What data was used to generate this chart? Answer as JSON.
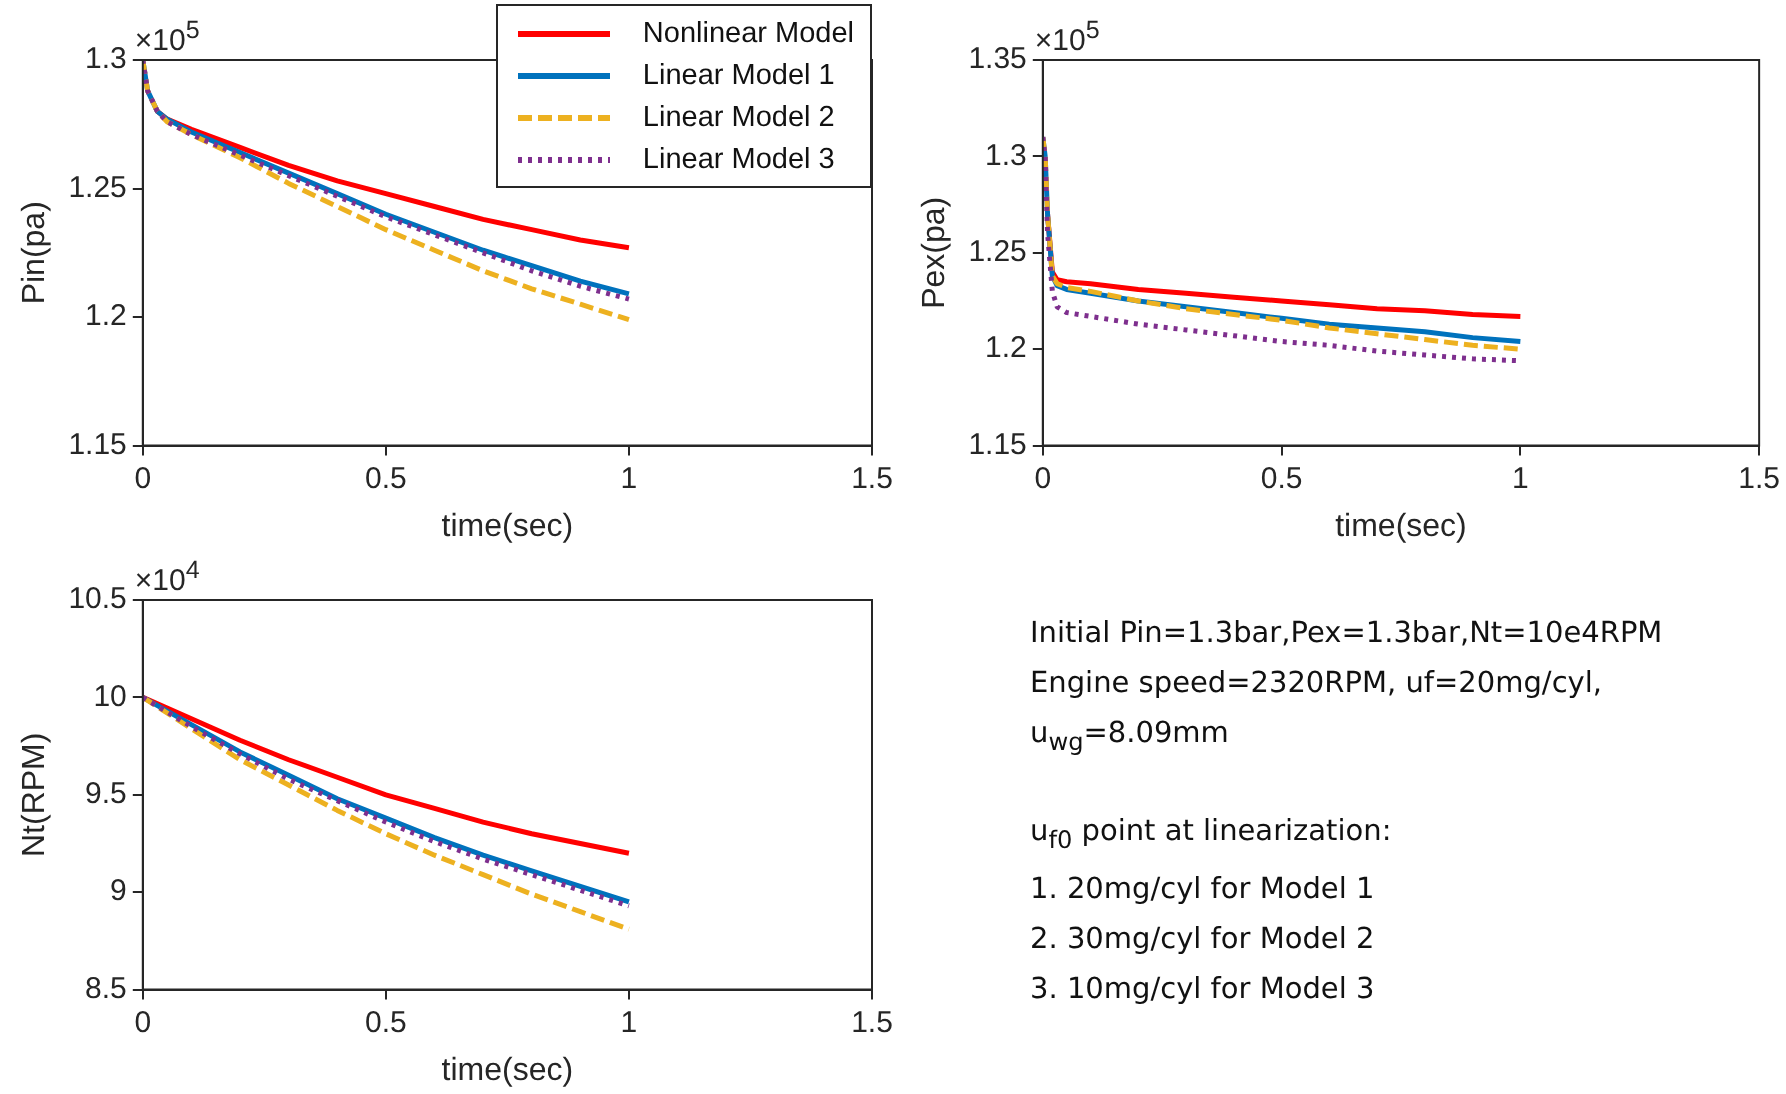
{
  "chart_data": [
    {
      "type": "line",
      "xlabel": "time(sec)",
      "ylabel": "Pin(pa)",
      "annotations": [
        "×10$^{5}$"
      ],
      "xlim": [
        0,
        1.5
      ],
      "xticks": [
        0,
        0.5,
        1,
        1.5
      ],
      "ylim": [
        1.15,
        1.3
      ],
      "yticks": [
        1.15,
        1.2,
        1.25,
        1.3
      ],
      "legend": "top right",
      "x": [
        0,
        0.01,
        0.03,
        0.05,
        0.1,
        0.2,
        0.3,
        0.4,
        0.5,
        0.6,
        0.7,
        0.8,
        0.9,
        1.0
      ],
      "series": [
        {
          "name": "Nonlinear Model",
          "color": "#ff0000",
          "line_style": "solid",
          "values": [
            null,
            null,
            1.28,
            1.277,
            1.273,
            1.266,
            1.259,
            1.253,
            1.248,
            1.243,
            1.238,
            1.234,
            1.23,
            1.227
          ]
        },
        {
          "name": "Linear Model 1",
          "color": "#0072bd",
          "line_style": "solid",
          "values": [
            1.3,
            1.288,
            1.28,
            1.277,
            1.272,
            1.264,
            1.256,
            1.248,
            1.24,
            1.233,
            1.226,
            1.22,
            1.214,
            1.209
          ]
        },
        {
          "name": "Linear Model 2",
          "color": "#edb120",
          "line_style": "dashed",
          "values": [
            1.3,
            1.288,
            1.28,
            1.276,
            1.271,
            1.262,
            1.252,
            1.243,
            1.234,
            1.226,
            1.218,
            1.211,
            1.205,
            1.199
          ]
        },
        {
          "name": "Linear Model 3",
          "color": "#7e2f8e",
          "line_style": "dotted",
          "values": [
            1.3,
            1.288,
            1.28,
            1.276,
            1.271,
            1.263,
            1.255,
            1.247,
            1.239,
            1.232,
            1.225,
            1.218,
            1.212,
            1.207
          ]
        }
      ]
    },
    {
      "type": "line",
      "xlabel": "time(sec)",
      "ylabel": "Pex(pa)",
      "annotations": [
        "×10$^{5}$"
      ],
      "xlim": [
        0,
        1.5
      ],
      "xticks": [
        0,
        0.5,
        1,
        1.5
      ],
      "ylim": [
        1.15,
        1.35
      ],
      "yticks": [
        1.15,
        1.2,
        1.25,
        1.3,
        1.35
      ],
      "x": [
        0,
        0.005,
        0.01,
        0.02,
        0.03,
        0.05,
        0.1,
        0.2,
        0.3,
        0.4,
        0.5,
        0.6,
        0.7,
        0.8,
        0.9,
        1.0
      ],
      "series": [
        {
          "color": "#ff0000",
          "line_style": "solid",
          "values": [
            null,
            null,
            1.27,
            1.24,
            1.236,
            1.235,
            1.234,
            1.231,
            1.229,
            1.227,
            1.225,
            1.223,
            1.221,
            1.22,
            1.218,
            1.217
          ]
        },
        {
          "color": "#0072bd",
          "line_style": "solid",
          "values": [
            1.31,
            1.3,
            1.27,
            1.238,
            1.233,
            1.231,
            1.229,
            1.225,
            1.222,
            1.219,
            1.216,
            1.213,
            1.211,
            1.209,
            1.206,
            1.204
          ]
        },
        {
          "color": "#edb120",
          "line_style": "dashed",
          "values": [
            1.31,
            1.3,
            1.27,
            1.238,
            1.234,
            1.232,
            1.23,
            1.225,
            1.221,
            1.218,
            1.215,
            1.211,
            1.208,
            1.205,
            1.202,
            1.2
          ]
        },
        {
          "color": "#7e2f8e",
          "line_style": "dotted",
          "values": [
            1.31,
            1.3,
            1.26,
            1.23,
            1.222,
            1.219,
            1.217,
            1.213,
            1.21,
            1.207,
            1.204,
            1.202,
            1.199,
            1.197,
            1.195,
            1.194
          ]
        }
      ]
    },
    {
      "type": "line",
      "xlabel": "time(sec)",
      "ylabel": "Nt(RPM)",
      "annotations": [
        "×10$^{4}$"
      ],
      "xlim": [
        0,
        1.5
      ],
      "xticks": [
        0,
        0.5,
        1,
        1.5
      ],
      "ylim": [
        8.5,
        10.5
      ],
      "yticks": [
        8.5,
        9,
        9.5,
        10,
        10.5
      ],
      "x": [
        0,
        0.1,
        0.2,
        0.3,
        0.4,
        0.5,
        0.6,
        0.7,
        0.8,
        0.9,
        1.0
      ],
      "series": [
        {
          "color": "#ff0000",
          "line_style": "solid",
          "values": [
            10,
            9.89,
            9.78,
            9.68,
            9.59,
            9.5,
            9.43,
            9.36,
            9.3,
            9.25,
            9.2
          ]
        },
        {
          "color": "#0072bd",
          "line_style": "solid",
          "values": [
            10,
            9.86,
            9.72,
            9.6,
            9.48,
            9.38,
            9.28,
            9.19,
            9.11,
            9.03,
            8.95
          ]
        },
        {
          "color": "#edb120",
          "line_style": "dashed",
          "values": [
            10,
            9.84,
            9.68,
            9.55,
            9.42,
            9.3,
            9.19,
            9.09,
            8.99,
            8.9,
            8.81
          ]
        },
        {
          "color": "#7e2f8e",
          "line_style": "dotted",
          "values": [
            10,
            9.85,
            9.71,
            9.58,
            9.47,
            9.36,
            9.26,
            9.17,
            9.09,
            9.01,
            8.93
          ]
        }
      ]
    },
    {
      "type": "other",
      "annotations": [
        "Initial Pin=1.3bar,Pex=1.3bar,Nt=10e4RPM",
        "Engine speed=2320RPM, uf=20mg/cyl,",
        "u$_{wg}$=8.09mm",
        "u$_{f0}$ point at linearization:",
        "1. 20mg/cyl for Model 1",
        "2. 30mg/cyl for Model 2",
        "3. 10mg/cyl for Model 3"
      ]
    }
  ]
}
